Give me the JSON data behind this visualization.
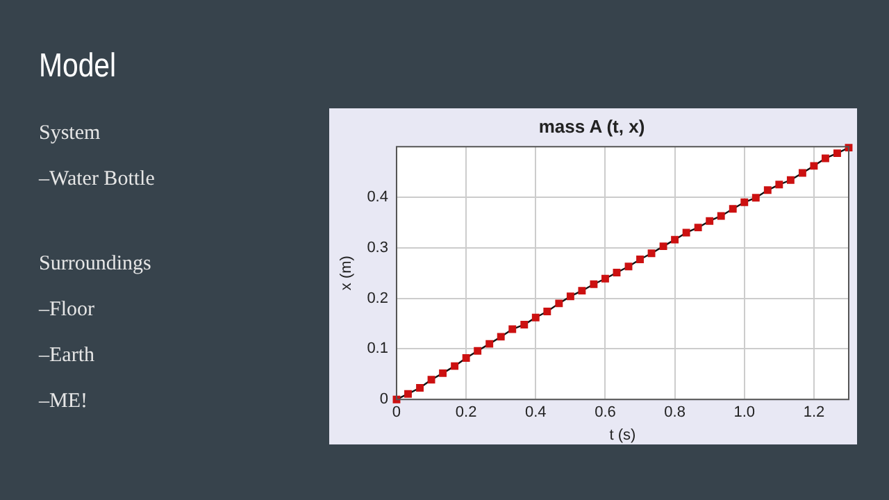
{
  "chart_data": {
    "type": "line",
    "title": "mass A (t, x)",
    "xlabel": "t (s)",
    "ylabel": "x (m)",
    "annotations": [
      "Model",
      "System",
      "–Water Bottle",
      "Surroundings",
      "–Floor",
      "–Earth",
      "–ME!"
    ],
    "x": [
      0,
      0.033,
      0.067,
      0.1,
      0.133,
      0.167,
      0.2,
      0.233,
      0.267,
      0.3,
      0.333,
      0.367,
      0.4,
      0.433,
      0.467,
      0.5,
      0.533,
      0.567,
      0.6,
      0.633,
      0.667,
      0.7,
      0.733,
      0.767,
      0.8,
      0.833,
      0.867,
      0.9,
      0.933,
      0.967,
      1.0,
      1.033,
      1.067,
      1.1,
      1.133,
      1.167,
      1.2,
      1.233,
      1.267,
      1.3
    ],
    "series": [
      {
        "color": "#cc1111",
        "values": [
          0,
          0.011,
          0.023,
          0.039,
          0.052,
          0.066,
          0.082,
          0.096,
          0.11,
          0.124,
          0.139,
          0.148,
          0.162,
          0.174,
          0.19,
          0.204,
          0.215,
          0.228,
          0.239,
          0.251,
          0.263,
          0.277,
          0.289,
          0.303,
          0.316,
          0.33,
          0.34,
          0.353,
          0.363,
          0.377,
          0.39,
          0.399,
          0.414,
          0.425,
          0.434,
          0.448,
          0.462,
          0.477,
          0.487,
          0.498
        ]
      }
    ],
    "xlim": [
      0,
      1.3
    ],
    "xticks": [
      0,
      0.2,
      0.4,
      0.6,
      0.8,
      {
        "value": 1,
        "label": "1.0"
      },
      1.2
    ],
    "ylim": [
      0,
      0.5
    ],
    "yticks": [
      0,
      0.1,
      0.2,
      0.3,
      0.4
    ],
    "grid": true,
    "legend": false,
    "marker": "square",
    "line_style": "solid"
  }
}
